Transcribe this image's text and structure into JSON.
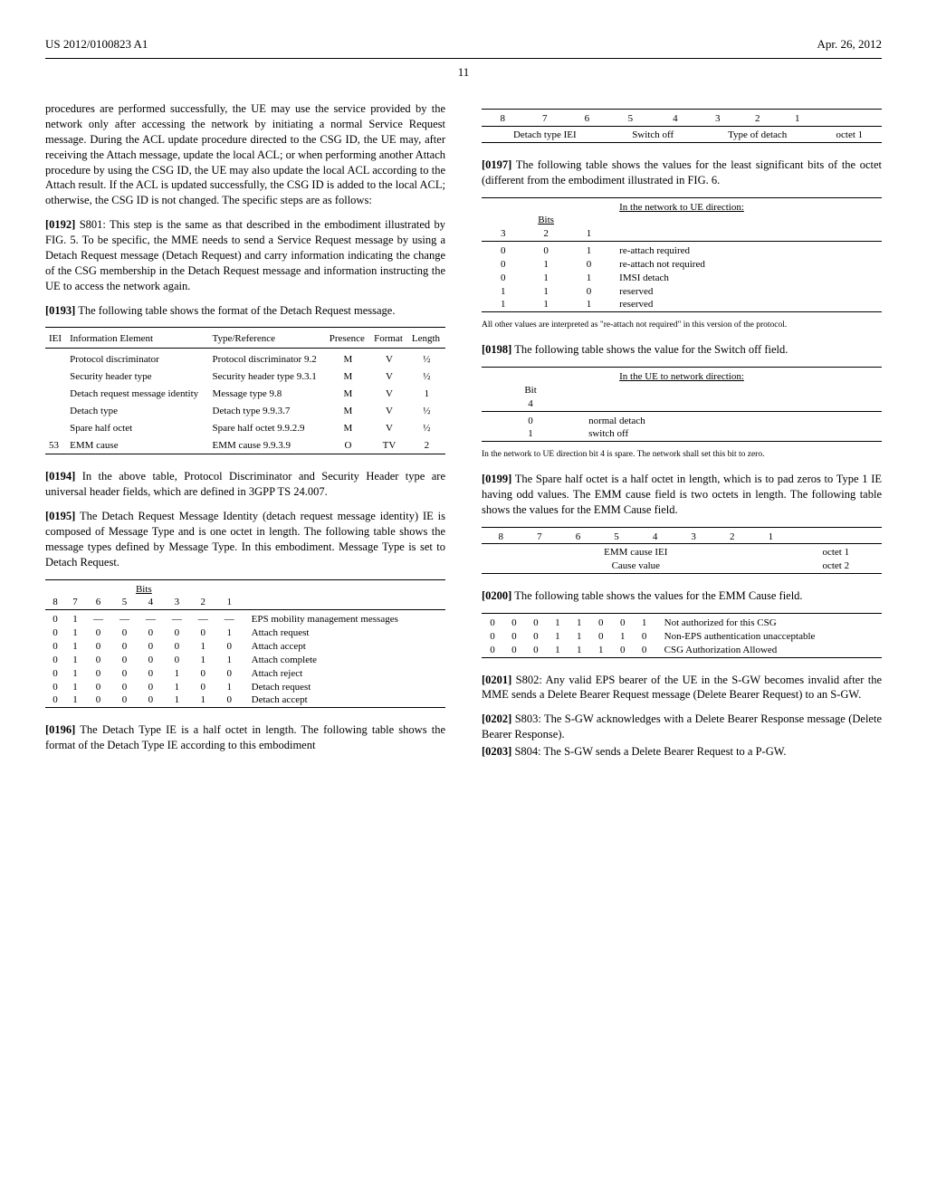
{
  "header": {
    "left": "US 2012/0100823 A1",
    "right": "Apr. 26, 2012",
    "page": "11"
  },
  "col1": {
    "p_intro": "procedures are performed successfully, the UE may use the service provided by the network only after accessing the network by initiating a normal Service Request message. During the ACL update procedure directed to the CSG ID, the UE may, after receiving the Attach message, update the local ACL; or when performing another Attach procedure by using the CSG ID, the UE may also update the local ACL according to the Attach result. If the ACL is updated successfully, the CSG ID is added to the local ACL; otherwise, the CSG ID is not changed. The specific steps are as follows:",
    "p_0192_num": "[0192]",
    "p_0192": " S801: This step is the same as that described in the embodiment illustrated by FIG. 5. To be specific, the MME needs to send a Service Request message by using a Detach Request message (Detach Request) and carry information indicating the change of the CSG membership in the Detach Request message and information instructing the UE to access the network again.",
    "p_0193_num": "[0193]",
    "p_0193": " The following table shows the format of the Detach Request message.",
    "detach_table": {
      "headers": [
        "IEI",
        "Information Element",
        "Type/Reference",
        "Presence",
        "Format",
        "Length"
      ],
      "rows": [
        [
          "",
          "Protocol discriminator",
          "Protocol discriminator 9.2",
          "M",
          "V",
          "½"
        ],
        [
          "",
          "Security header type",
          "Security header type 9.3.1",
          "M",
          "V",
          "½"
        ],
        [
          "",
          "Detach request message identity",
          "Message type 9.8",
          "M",
          "V",
          "1"
        ],
        [
          "",
          "Detach type",
          "Detach type 9.9.3.7",
          "M",
          "V",
          "½"
        ],
        [
          "",
          "Spare half octet",
          "Spare half octet 9.9.2.9",
          "M",
          "V",
          "½"
        ],
        [
          "53",
          "EMM cause",
          "EMM cause 9.9.3.9",
          "O",
          "TV",
          "2"
        ]
      ]
    },
    "p_0194_num": "[0194]",
    "p_0194": " In the above table, Protocol Discriminator and Security Header type are universal header fields, which are defined in 3GPP TS 24.007.",
    "p_0195_num": "[0195]",
    "p_0195": " The Detach Request Message Identity (detach request message identity) IE is composed of Message Type and is one octet in length. The following table shows the message types defined by Message Type. In this embodiment. Message Type is set to Detach Request.",
    "bits_header": "Bits",
    "bit_nums": [
      "8",
      "7",
      "6",
      "5",
      "4",
      "3",
      "2",
      "1"
    ],
    "bit_rows": [
      {
        "b": [
          "0",
          "1",
          "-",
          "-",
          "-",
          "-",
          "-",
          "-"
        ],
        "msg": "EPS mobility management messages"
      },
      {
        "b": [
          "0",
          "1",
          "0",
          "0",
          "0",
          "0",
          "0",
          "1"
        ],
        "msg": "Attach request"
      },
      {
        "b": [
          "0",
          "1",
          "0",
          "0",
          "0",
          "0",
          "1",
          "0"
        ],
        "msg": "Attach accept"
      },
      {
        "b": [
          "0",
          "1",
          "0",
          "0",
          "0",
          "0",
          "1",
          "1"
        ],
        "msg": "Attach complete"
      },
      {
        "b": [
          "0",
          "1",
          "0",
          "0",
          "0",
          "1",
          "0",
          "0"
        ],
        "msg": "Attach reject"
      },
      {
        "b": [
          "0",
          "1",
          "0",
          "0",
          "0",
          "1",
          "0",
          "1"
        ],
        "msg": "Detach request"
      },
      {
        "b": [
          "0",
          "1",
          "0",
          "0",
          "0",
          "1",
          "1",
          "0"
        ],
        "msg": "Detach accept"
      }
    ],
    "p_0196_num": "[0196]",
    "p_0196": " The Detach Type IE is a half octet in length. The following table shows the format of the Detach Type IE according to this embodiment"
  },
  "col2": {
    "detach_type_ie": {
      "bit_nums": [
        "8",
        "7",
        "6",
        "5",
        "4",
        "3",
        "2",
        "1"
      ],
      "fields": [
        "Detach type IEI",
        "Switch off",
        "Type of detach",
        "octet 1"
      ]
    },
    "p_0197_num": "[0197]",
    "p_0197": " The following table shows the values for the least significant bits of the octet (different from the embodiment illustrated in FIG. 6.",
    "dir_net_ue": "In the network to UE direction:",
    "bits_label": "Bits",
    "b321": [
      "3",
      "2",
      "1"
    ],
    "net_ue_rows": [
      {
        "b": [
          "0",
          "0",
          "1"
        ],
        "msg": "re-attach required"
      },
      {
        "b": [
          "0",
          "1",
          "0"
        ],
        "msg": "re-attach not required"
      },
      {
        "b": [
          "0",
          "1",
          "1"
        ],
        "msg": "IMSI detach"
      },
      {
        "b": [
          "1",
          "1",
          "0"
        ],
        "msg": "reserved"
      },
      {
        "b": [
          "1",
          "1",
          "1"
        ],
        "msg": "reserved"
      }
    ],
    "note1": "All other values are interpreted as \"re-attach not required\" in this version of the protocol.",
    "p_0198_num": "[0198]",
    "p_0198": " The following table shows the value for the Switch off field.",
    "dir_ue_net": "In the UE to network direction:",
    "bit_label": "Bit",
    "bit4": "4",
    "switch_rows": [
      {
        "b": "0",
        "msg": "normal detach"
      },
      {
        "b": "1",
        "msg": "switch off"
      }
    ],
    "note2": "In the network to UE direction bit 4 is spare. The network shall set this bit to zero.",
    "p_0199_num": "[0199]",
    "p_0199": " The Spare half octet is a half octet in length, which is to pad zeros to Type 1 IE having odd values. The EMM cause field is two octets in length. The following table shows the values for the EMM Cause field.",
    "emm_bits": [
      "8",
      "7",
      "6",
      "5",
      "4",
      "3",
      "2",
      "1"
    ],
    "emm_r1": "EMM cause IEI",
    "emm_r1_o": "octet 1",
    "emm_r2": "Cause value",
    "emm_r2_o": "octet 2",
    "p_0200_num": "[0200]",
    "p_0200": " The following table shows the values for the EMM Cause field.",
    "cause_rows": [
      {
        "b": [
          "0",
          "0",
          "0",
          "1",
          "1",
          "0",
          "0",
          "1"
        ],
        "msg": "Not authorized for this CSG"
      },
      {
        "b": [
          "0",
          "0",
          "0",
          "1",
          "1",
          "0",
          "1",
          "0"
        ],
        "msg": "Non-EPS authentication unacceptable"
      },
      {
        "b": [
          "0",
          "0",
          "0",
          "1",
          "1",
          "1",
          "0",
          "0"
        ],
        "msg": "CSG Authorization Allowed"
      }
    ],
    "p_0201_num": "[0201]",
    "p_0201": " S802: Any valid EPS bearer of the UE in the S-GW becomes invalid after the MME sends a Delete Bearer Request message (Delete Bearer Request) to an S-GW.",
    "p_0202_num": "[0202]",
    "p_0202": " S803: The S-GW acknowledges with a Delete Bearer Response message (Delete Bearer Response).",
    "p_0203_num": "[0203]",
    "p_0203": " S804: The S-GW sends a Delete Bearer Request to a P-GW."
  }
}
